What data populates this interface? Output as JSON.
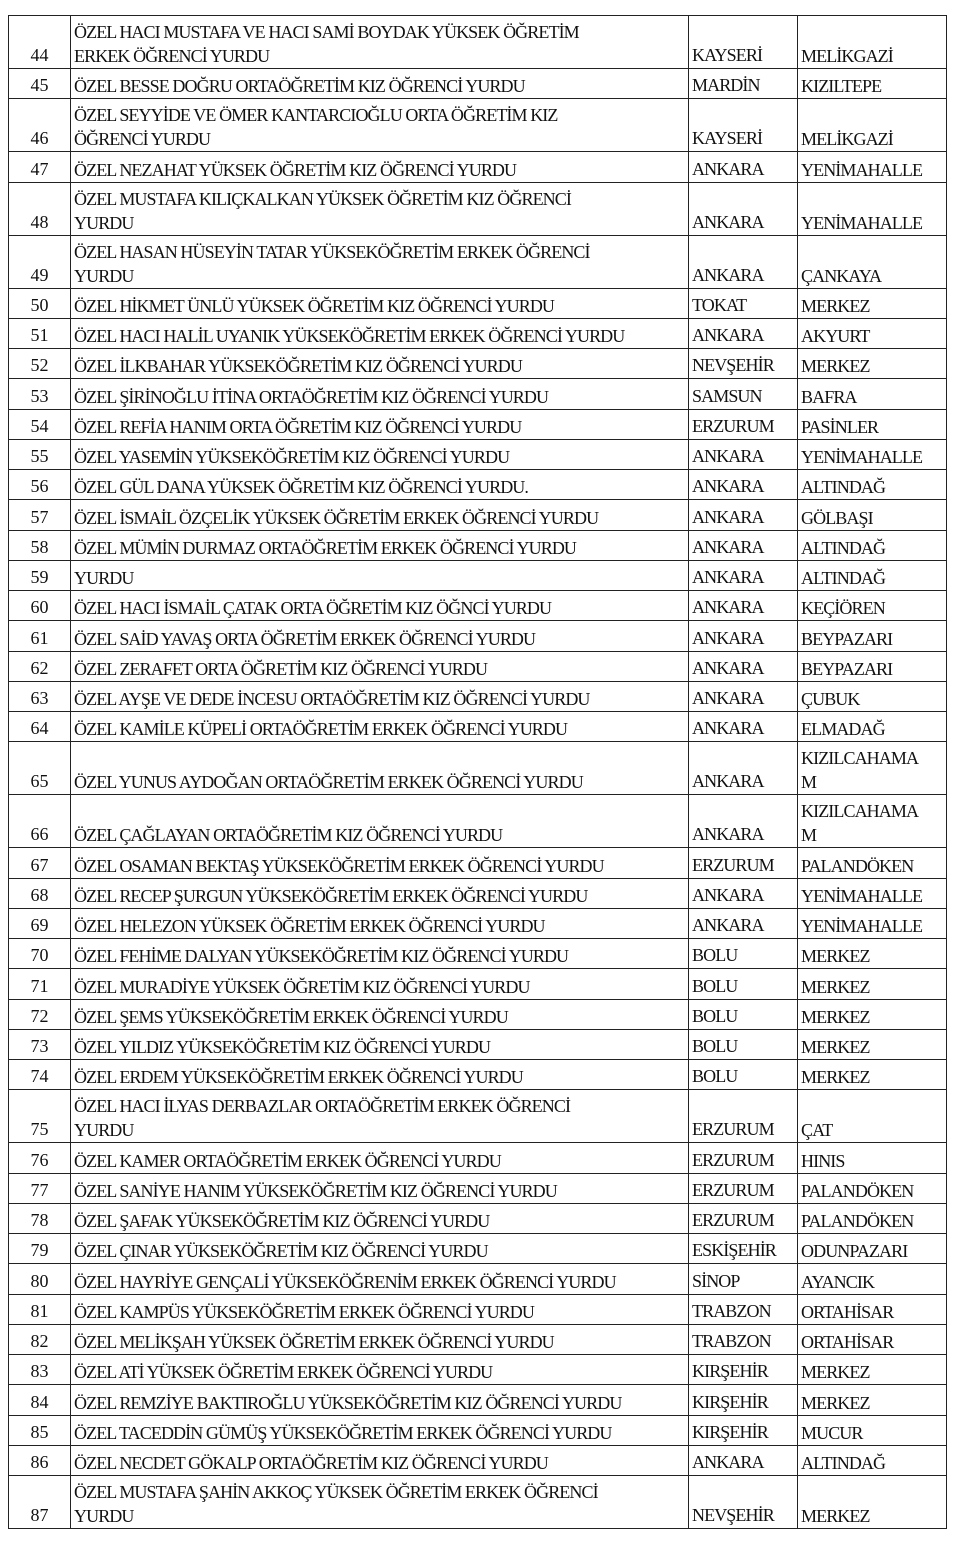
{
  "rows": [
    {
      "no": "44",
      "name": [
        "ÖZEL HACI MUSTAFA VE HACI SAMİ BOYDAK YÜKSEK ÖĞRETİM",
        "ERKEK ÖĞRENCİ YURDU"
      ],
      "city": "KAYSERİ",
      "district": [
        "MELİKGAZİ"
      ]
    },
    {
      "no": "45",
      "name": [
        "ÖZEL BESSE DOĞRU ORTAÖĞRETİM KIZ ÖĞRENCİ YURDU"
      ],
      "city": "MARDİN",
      "district": [
        "KIZILTEPE"
      ]
    },
    {
      "no": "46",
      "name": [
        "ÖZEL SEYYİDE VE ÖMER KANTARCIOĞLU ORTA ÖĞRETİM KIZ",
        "ÖĞRENCİ YURDU"
      ],
      "city": "KAYSERİ",
      "district": [
        "MELİKGAZİ"
      ]
    },
    {
      "no": "47",
      "name": [
        "ÖZEL NEZAHAT YÜKSEK ÖĞRETİM KIZ ÖĞRENCİ YURDU"
      ],
      "city": "ANKARA",
      "district": [
        "YENİMAHALLE"
      ]
    },
    {
      "no": "48",
      "name": [
        "ÖZEL MUSTAFA KILIÇKALKAN YÜKSEK ÖĞRETİM KIZ ÖĞRENCİ",
        "YURDU"
      ],
      "city": "ANKARA",
      "district": [
        "YENİMAHALLE"
      ]
    },
    {
      "no": "49",
      "name": [
        "ÖZEL HASAN HÜSEYİN TATAR YÜKSEKÖĞRETİM ERKEK ÖĞRENCİ",
        "YURDU"
      ],
      "city": "ANKARA",
      "district": [
        "ÇANKAYA"
      ]
    },
    {
      "no": "50",
      "name": [
        "ÖZEL HİKMET ÜNLÜ YÜKSEK ÖĞRETİM KIZ ÖĞRENCİ YURDU"
      ],
      "city": "TOKAT",
      "district": [
        "MERKEZ"
      ]
    },
    {
      "no": "51",
      "name": [
        "ÖZEL HACI HALİL UYANIK YÜKSEKÖĞRETİM ERKEK ÖĞRENCİ YURDU"
      ],
      "city": "ANKARA",
      "district": [
        "AKYURT"
      ]
    },
    {
      "no": "52",
      "name": [
        "ÖZEL İLKBAHAR YÜKSEKÖĞRETİM KIZ ÖĞRENCİ YURDU"
      ],
      "city": "NEVŞEHİR",
      "district": [
        "MERKEZ"
      ]
    },
    {
      "no": "53",
      "name": [
        "ÖZEL ŞİRİNOĞLU İTİNA ORTAÖĞRETİM KIZ ÖĞRENCİ YURDU"
      ],
      "city": "SAMSUN",
      "district": [
        "BAFRA"
      ]
    },
    {
      "no": "54",
      "name": [
        "ÖZEL REFİA HANIM ORTA ÖĞRETİM KIZ ÖĞRENCİ YURDU"
      ],
      "city": "ERZURUM",
      "district": [
        "PASİNLER"
      ]
    },
    {
      "no": "55",
      "name": [
        "ÖZEL YASEMİN YÜKSEKÖĞRETİM KIZ ÖĞRENCİ YURDU"
      ],
      "city": "ANKARA",
      "district": [
        "YENİMAHALLE"
      ]
    },
    {
      "no": "56",
      "name": [
        "ÖZEL GÜL DANA YÜKSEK ÖĞRETİM KIZ ÖĞRENCİ YURDU."
      ],
      "city": "ANKARA",
      "district": [
        "ALTINDAĞ"
      ]
    },
    {
      "no": "57",
      "name": [
        "ÖZEL İSMAİL ÖZÇELİK YÜKSEK ÖĞRETİM ERKEK ÖĞRENCİ YURDU"
      ],
      "city": "ANKARA",
      "district": [
        "GÖLBAŞI"
      ]
    },
    {
      "no": "58",
      "name": [
        "ÖZEL MÜMİN DURMAZ ORTAÖĞRETİM ERKEK ÖĞRENCİ YURDU"
      ],
      "city": "ANKARA",
      "district": [
        "ALTINDAĞ"
      ]
    },
    {
      "no": "59",
      "name": [
        "YURDU"
      ],
      "city": "ANKARA",
      "district": [
        "ALTINDAĞ"
      ]
    },
    {
      "no": "60",
      "name": [
        "ÖZEL HACI İSMAİL ÇATAK ORTA ÖĞRETİM KIZ ÖĞNCİ YURDU"
      ],
      "city": "ANKARA",
      "district": [
        "KEÇİÖREN"
      ]
    },
    {
      "no": "61",
      "name": [
        "ÖZEL SAİD YAVAŞ ORTA ÖĞRETİM ERKEK ÖĞRENCİ YURDU"
      ],
      "city": "ANKARA",
      "district": [
        "BEYPAZARI"
      ]
    },
    {
      "no": "62",
      "name": [
        "ÖZEL ZERAFET ORTA ÖĞRETİM KIZ ÖĞRENCİ YURDU"
      ],
      "city": "ANKARA",
      "district": [
        "BEYPAZARI"
      ]
    },
    {
      "no": "63",
      "name": [
        "ÖZEL AYŞE VE DEDE İNCESU ORTAÖĞRETİM KIZ ÖĞRENCİ YURDU"
      ],
      "city": "ANKARA",
      "district": [
        "ÇUBUK"
      ]
    },
    {
      "no": "64",
      "name": [
        "ÖZEL KAMİLE KÜPELİ ORTAÖĞRETİM ERKEK ÖĞRENCİ YURDU"
      ],
      "city": "ANKARA",
      "district": [
        "ELMADAĞ"
      ]
    },
    {
      "no": "65",
      "name": [
        "ÖZEL YUNUS AYDOĞAN ORTAÖĞRETİM ERKEK ÖĞRENCİ YURDU"
      ],
      "city": "ANKARA",
      "district": [
        "KIZILCAHAMA",
        "M"
      ]
    },
    {
      "no": "66",
      "name": [
        "ÖZEL ÇAĞLAYAN ORTAÖĞRETİM KIZ ÖĞRENCİ YURDU"
      ],
      "city": "ANKARA",
      "district": [
        "KIZILCAHAMA",
        "M"
      ]
    },
    {
      "no": "67",
      "name": [
        "ÖZEL OSAMAN BEKTAŞ YÜKSEKÖĞRETİM ERKEK ÖĞRENCİ YURDU"
      ],
      "city": "ERZURUM",
      "district": [
        "PALANDÖKEN"
      ]
    },
    {
      "no": "68",
      "name": [
        "ÖZEL RECEP ŞURGUN YÜKSEKÖĞRETİM ERKEK ÖĞRENCİ YURDU"
      ],
      "city": "ANKARA",
      "district": [
        "YENİMAHALLE"
      ]
    },
    {
      "no": "69",
      "name": [
        "ÖZEL HELEZON YÜKSEK ÖĞRETİM ERKEK ÖĞRENCİ YURDU"
      ],
      "city": "ANKARA",
      "district": [
        "YENİMAHALLE"
      ]
    },
    {
      "no": "70",
      "name": [
        "ÖZEL FEHİME DALYAN YÜKSEKÖĞRETİM KIZ ÖĞRENCİ YURDU"
      ],
      "city": "BOLU",
      "district": [
        "MERKEZ"
      ]
    },
    {
      "no": "71",
      "name": [
        "ÖZEL MURADİYE YÜKSEK ÖĞRETİM KIZ ÖĞRENCİ YURDU"
      ],
      "city": "BOLU",
      "district": [
        "MERKEZ"
      ]
    },
    {
      "no": "72",
      "name": [
        "ÖZEL ŞEMS YÜKSEKÖĞRETİM ERKEK ÖĞRENCİ YURDU"
      ],
      "city": "BOLU",
      "district": [
        "MERKEZ"
      ]
    },
    {
      "no": "73",
      "name": [
        "ÖZEL YILDIZ YÜKSEKÖĞRETİM KIZ ÖĞRENCİ YURDU"
      ],
      "city": "BOLU",
      "district": [
        "MERKEZ"
      ]
    },
    {
      "no": "74",
      "name": [
        "ÖZEL ERDEM YÜKSEKÖĞRETİM ERKEK ÖĞRENCİ YURDU"
      ],
      "city": "BOLU",
      "district": [
        "MERKEZ"
      ]
    },
    {
      "no": "75",
      "name": [
        "ÖZEL HACI İLYAS DERBAZLAR ORTAÖĞRETİM ERKEK ÖĞRENCİ",
        "YURDU"
      ],
      "city": "ERZURUM",
      "district": [
        "ÇAT"
      ]
    },
    {
      "no": "76",
      "name": [
        "ÖZEL KAMER ORTAÖĞRETİM ERKEK ÖĞRENCİ YURDU"
      ],
      "city": "ERZURUM",
      "district": [
        "HINIS"
      ]
    },
    {
      "no": "77",
      "name": [
        "ÖZEL SANİYE HANIM YÜKSEKÖĞRETİM KIZ ÖĞRENCİ YURDU"
      ],
      "city": "ERZURUM",
      "district": [
        "PALANDÖKEN"
      ]
    },
    {
      "no": "78",
      "name": [
        "ÖZEL ŞAFAK YÜKSEKÖĞRETİM KIZ ÖĞRENCİ YURDU"
      ],
      "city": "ERZURUM",
      "district": [
        "PALANDÖKEN"
      ]
    },
    {
      "no": "79",
      "name": [
        "ÖZEL ÇINAR YÜKSEKÖĞRETİM KIZ ÖĞRENCİ YURDU"
      ],
      "city": "ESKİŞEHİR",
      "district": [
        "ODUNPAZARI"
      ]
    },
    {
      "no": "80",
      "name": [
        "ÖZEL HAYRİYE GENÇALİ YÜKSEKÖĞRENİM ERKEK ÖĞRENCİ YURDU"
      ],
      "city": "SİNOP",
      "district": [
        "AYANCIK"
      ]
    },
    {
      "no": "81",
      "name": [
        "ÖZEL KAMPÜS YÜKSEKÖĞRETİM ERKEK ÖĞRENCİ YURDU"
      ],
      "city": "TRABZON",
      "district": [
        "ORTAHİSAR"
      ]
    },
    {
      "no": "82",
      "name": [
        "ÖZEL MELİKŞAH YÜKSEK ÖĞRETİM ERKEK ÖĞRENCİ YURDU"
      ],
      "city": "TRABZON",
      "district": [
        "ORTAHİSAR"
      ]
    },
    {
      "no": "83",
      "name": [
        "ÖZEL ATİ YÜKSEK ÖĞRETİM ERKEK ÖĞRENCİ YURDU"
      ],
      "city": "KIRŞEHİR",
      "district": [
        "MERKEZ"
      ]
    },
    {
      "no": "84",
      "name": [
        "ÖZEL REMZİYE BAKTIROĞLU YÜKSEKÖĞRETİM KIZ ÖĞRENCİ YURDU"
      ],
      "city": "KIRŞEHİR",
      "district": [
        "MERKEZ"
      ]
    },
    {
      "no": "85",
      "name": [
        "ÖZEL TACEDDİN GÜMÜŞ YÜKSEKÖĞRETİM ERKEK ÖĞRENCİ YURDU"
      ],
      "city": "KIRŞEHİR",
      "district": [
        "MUCUR"
      ]
    },
    {
      "no": "86",
      "name": [
        "ÖZEL NECDET GÖKALP ORTAÖĞRETİM KIZ ÖĞRENCİ YURDU"
      ],
      "city": "ANKARA",
      "district": [
        "ALTINDAĞ"
      ]
    },
    {
      "no": "87",
      "name": [
        "ÖZEL MUSTAFA ŞAHİN AKKOÇ YÜKSEK ÖĞRETİM ERKEK ÖĞRENCİ",
        "YURDU"
      ],
      "city": "NEVŞEHİR",
      "district": [
        "MERKEZ"
      ]
    }
  ]
}
